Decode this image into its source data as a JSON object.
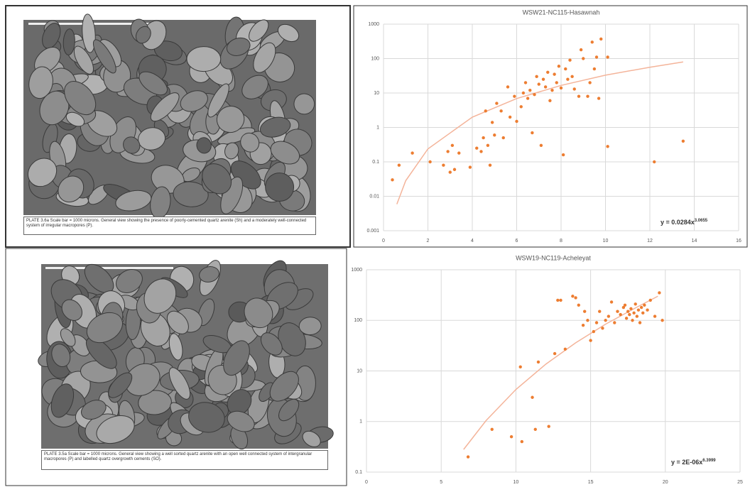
{
  "plates": [
    {
      "caption": "PLATE 3.6a  Scale bar = 1000 microns.    General view showing the presence of poorly-cemented quartz arenite (Sh) and a moderately well-connected system of irregular macropores (P)."
    },
    {
      "caption": "PLATE 3.5a  Scale bar = 1000 microns.    General view showing a well sorted quartz arenite with an open well connected system of intergranular macropores (P) and labelled quartz overgrowth cements (SO)."
    }
  ],
  "chart_data": [
    {
      "type": "scatter",
      "title": "WSW21-NC115-Hasawnah",
      "xlim": [
        0,
        16
      ],
      "xticks": [
        0,
        2,
        4,
        6,
        8,
        10,
        12,
        14,
        16
      ],
      "ylim": [
        0.001,
        1000
      ],
      "yticks": [
        1000,
        100,
        10,
        1,
        0.1,
        0.01,
        0.001
      ],
      "log_y": true,
      "grid": true,
      "series": [
        {
          "color": "#ed7d31",
          "x": [
            0.4,
            0.7,
            1.3,
            2.1,
            2.7,
            2.9,
            3.0,
            3.1,
            3.2,
            3.4,
            3.9,
            4.2,
            4.4,
            4.5,
            4.6,
            4.7,
            4.8,
            4.9,
            5.0,
            5.1,
            5.3,
            5.4,
            5.6,
            5.7,
            5.9,
            6.0,
            6.2,
            6.3,
            6.4,
            6.5,
            6.6,
            6.7,
            6.8,
            6.9,
            7.0,
            7.1,
            7.2,
            7.3,
            7.4,
            7.5,
            7.6,
            7.7,
            7.8,
            7.9,
            8.0,
            8.1,
            8.2,
            8.3,
            8.4,
            8.5,
            8.6,
            8.8,
            8.9,
            9.0,
            9.2,
            9.3,
            9.4,
            9.5,
            9.6,
            9.7,
            9.8,
            10.1,
            10.1,
            12.2,
            13.5
          ],
          "values": [
            0.03,
            0.08,
            0.18,
            0.1,
            0.08,
            0.2,
            0.05,
            0.3,
            0.06,
            0.18,
            0.07,
            0.25,
            0.2,
            0.5,
            3,
            0.3,
            0.08,
            1.4,
            0.6,
            5,
            3,
            0.5,
            15,
            2,
            8,
            1.5,
            4,
            10,
            20,
            7,
            12,
            0.7,
            9,
            30,
            18,
            0.3,
            25,
            15,
            40,
            6,
            12,
            35,
            20,
            60,
            14,
            0.16,
            50,
            25,
            90,
            30,
            13,
            8,
            180,
            100,
            8,
            20,
            300,
            50,
            110,
            7,
            370,
            110,
            0.28,
            0.1,
            0.4
          ]
        }
      ],
      "trendline": {
        "color": "#f4b49a",
        "x": [
          0.6,
          1,
          2,
          4,
          6,
          8,
          10,
          12,
          13.5
        ],
        "values": [
          0.0059,
          0.0284,
          0.238,
          1.99,
          6.9,
          16.6,
          33,
          56,
          80
        ]
      },
      "equation": {
        "text": "y = 0.0284x",
        "exponent": "3.0655"
      }
    },
    {
      "type": "scatter",
      "title": "WSW19-NC119-Acheleyat",
      "xlim": [
        0,
        25
      ],
      "xticks": [
        0,
        5,
        10,
        15,
        20,
        25
      ],
      "ylim": [
        0.1,
        1000
      ],
      "yticks": [
        1000,
        100,
        10,
        1,
        0.1
      ],
      "log_y": true,
      "grid": true,
      "series": [
        {
          "color": "#ed7d31",
          "x": [
            6.8,
            8.4,
            9.7,
            10.3,
            10.4,
            11.1,
            11.3,
            11.5,
            12.2,
            12.6,
            12.8,
            13.0,
            13.3,
            13.8,
            14.0,
            14.2,
            14.5,
            14.6,
            14.8,
            15.0,
            15.2,
            15.4,
            15.6,
            15.8,
            16.0,
            16.2,
            16.4,
            16.6,
            16.8,
            17.0,
            17.2,
            17.3,
            17.4,
            17.5,
            17.6,
            17.7,
            17.8,
            17.9,
            18.0,
            18.1,
            18.2,
            18.3,
            18.4,
            18.5,
            18.6,
            18.8,
            19.0,
            19.3,
            19.6,
            19.8
          ],
          "values": [
            0.2,
            0.7,
            0.5,
            12,
            0.4,
            3,
            0.7,
            15,
            0.8,
            22,
            250,
            250,
            27,
            300,
            280,
            200,
            80,
            150,
            100,
            40,
            60,
            90,
            150,
            70,
            100,
            120,
            230,
            90,
            150,
            130,
            180,
            200,
            110,
            150,
            130,
            170,
            100,
            140,
            210,
            120,
            160,
            90,
            180,
            140,
            200,
            160,
            250,
            120,
            350,
            100
          ]
        }
      ],
      "trendline": {
        "color": "#f4b49a",
        "x": [
          6.5,
          8,
          10,
          12,
          14,
          16,
          18,
          19.5
        ],
        "values": [
          0.28,
          1.04,
          4.3,
          13.6,
          36,
          84,
          176,
          300
        ]
      },
      "equation": {
        "text": "y = 2E-06x",
        "exponent": "6.3999"
      }
    }
  ]
}
